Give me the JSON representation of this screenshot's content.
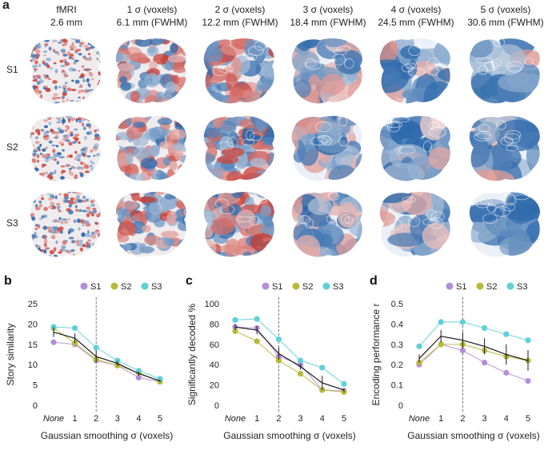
{
  "panel_a": {
    "letter": "a",
    "columns": [
      {
        "line1": "fMRI",
        "line2": "2.6 mm"
      },
      {
        "line1": "1 σ (voxels)",
        "line2": "6.1 mm (FWHM)"
      },
      {
        "line1": "2 σ (voxels)",
        "line2": "12.2 mm (FWHM)"
      },
      {
        "line1": "3 σ (voxels)",
        "line2": "18.4 mm (FWHM)"
      },
      {
        "line1": "4 σ (voxels)",
        "line2": "24.5 mm (FWHM)"
      },
      {
        "line1": "5 σ (voxels)",
        "line2": "30.6 mm (FWHM)"
      }
    ],
    "rows": [
      "S1",
      "S2",
      "S3"
    ]
  },
  "colors": {
    "S1": "#b48ed8",
    "S2": "#b9b93a",
    "S3": "#5fd0d8",
    "mean": "#1a1a1a",
    "red": "#c8382e",
    "blue": "#1f5fa6"
  },
  "chart_data": [
    {
      "letter": "b",
      "type": "line",
      "title": "",
      "xlabel": "Gaussian smoothing σ (voxels)",
      "ylabel": "Story similarity",
      "categories": [
        "None",
        "1",
        "2",
        "3",
        "4",
        "5"
      ],
      "yticks": [
        "0",
        "5",
        "10",
        "15",
        "20",
        "25"
      ],
      "ylim": [
        0,
        25
      ],
      "vline_at": "2",
      "legend": [
        "S1",
        "S2",
        "S3"
      ],
      "series": [
        {
          "name": "S1",
          "values": [
            15.5,
            15.0,
            11.0,
            9.8,
            6.8,
            5.8
          ]
        },
        {
          "name": "S2",
          "values": [
            19.0,
            15.3,
            11.3,
            9.8,
            8.0,
            5.8
          ]
        },
        {
          "name": "S3",
          "values": [
            19.3,
            19.0,
            14.2,
            11.0,
            8.5,
            6.5
          ]
        },
        {
          "name": "mean",
          "values": [
            18.0,
            16.5,
            12.0,
            10.3,
            7.8,
            6.0
          ],
          "errors": [
            1.2,
            1.2,
            1.5,
            0.6,
            0.5,
            0.3
          ]
        }
      ]
    },
    {
      "letter": "c",
      "type": "line",
      "title": "",
      "xlabel": "Gaussian smoothing σ (voxels)",
      "ylabel": "Significantly decoded %",
      "categories": [
        "None",
        "1",
        "2",
        "3",
        "4",
        "5"
      ],
      "yticks": [
        "0",
        "20",
        "40",
        "60",
        "80",
        "100"
      ],
      "ylim": [
        0,
        100
      ],
      "vline_at": "2",
      "legend": [
        "S1",
        "S2",
        "S3"
      ],
      "series": [
        {
          "name": "S1",
          "values": [
            77,
            76,
            48,
            40,
            15,
            14
          ]
        },
        {
          "name": "S2",
          "values": [
            73,
            63,
            44,
            31,
            15,
            13
          ]
        },
        {
          "name": "S3",
          "values": [
            84,
            85,
            65,
            44,
            37,
            21
          ]
        },
        {
          "name": "mean",
          "values": [
            77,
            74,
            51,
            38,
            22,
            15
          ],
          "errors": [
            3,
            4,
            6,
            3,
            7,
            2
          ]
        }
      ]
    },
    {
      "letter": "d",
      "type": "line",
      "title": "",
      "xlabel": "Gaussian smoothing σ (voxels)",
      "ylabel": "Encoding performance r",
      "categories": [
        "None",
        "1",
        "2",
        "3",
        "4",
        "5"
      ],
      "yticks": [
        "0",
        "0.1",
        "0.2",
        "0.3",
        "0.4",
        "0.5"
      ],
      "ylim": [
        0,
        0.5
      ],
      "vline_at": "2",
      "legend": [
        "S1",
        "S2",
        "S3"
      ],
      "series": [
        {
          "name": "S1",
          "values": [
            0.2,
            0.3,
            0.27,
            0.21,
            0.16,
            0.12
          ]
        },
        {
          "name": "S2",
          "values": [
            0.21,
            0.3,
            0.3,
            0.27,
            0.24,
            0.22
          ]
        },
        {
          "name": "S3",
          "values": [
            0.29,
            0.41,
            0.41,
            0.38,
            0.35,
            0.32
          ]
        },
        {
          "name": "mean",
          "values": [
            0.23,
            0.34,
            0.32,
            0.29,
            0.25,
            0.22
          ],
          "errors": [
            0.02,
            0.03,
            0.04,
            0.04,
            0.05,
            0.05
          ]
        }
      ]
    }
  ]
}
